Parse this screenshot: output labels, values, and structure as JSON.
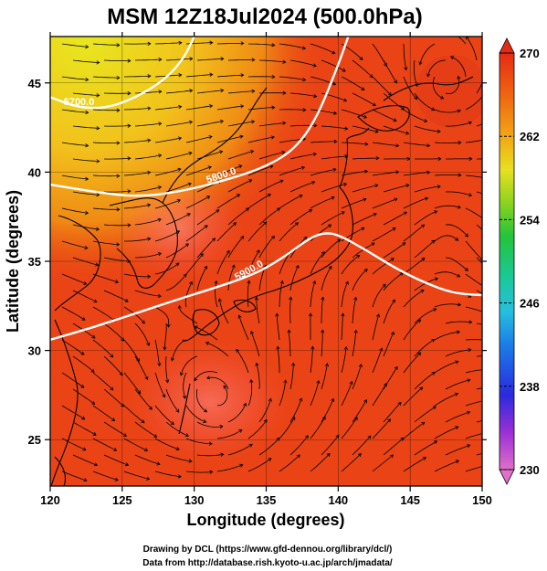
{
  "title": "MSM 12Z18Jul2024 (500.0hPa)",
  "x_axis": {
    "label": "Longitude (degrees)",
    "range": [
      120,
      150
    ],
    "ticks": [
      120,
      125,
      130,
      135,
      140,
      145,
      150
    ]
  },
  "y_axis": {
    "label": "Latitude  (degrees)",
    "range": [
      22.4,
      47.6
    ],
    "ticks": [
      25,
      30,
      35,
      40,
      45
    ]
  },
  "colorbar": {
    "range": [
      230,
      270
    ],
    "ticks": [
      270,
      262,
      254,
      246,
      238,
      230
    ],
    "colors": [
      "#e070c8",
      "#9b2fd6",
      "#2a2ae0",
      "#1a7ee8",
      "#25c0e0",
      "#1bc89a",
      "#22c43a",
      "#8ad41e",
      "#e8e020",
      "#f2a614",
      "#f06410",
      "#e62a14"
    ]
  },
  "contours": [
    {
      "label": "5900.0",
      "points": [
        [
          120,
          30.6
        ],
        [
          123,
          31.3
        ],
        [
          126,
          32.1
        ],
        [
          129,
          32.9
        ],
        [
          131,
          33.4
        ],
        [
          134,
          34.2
        ],
        [
          136,
          35.1
        ],
        [
          138,
          36.3
        ],
        [
          139,
          36.6
        ],
        [
          140,
          36.5
        ],
        [
          142,
          35.6
        ],
        [
          144,
          34.6
        ],
        [
          146,
          33.8
        ],
        [
          148,
          33.2
        ],
        [
          150,
          33.1
        ]
      ]
    },
    {
      "label": "5800.0",
      "points": [
        [
          120,
          39.3
        ],
        [
          123,
          38.9
        ],
        [
          126,
          38.6
        ],
        [
          129,
          38.9
        ],
        [
          132,
          39.5
        ],
        [
          135,
          40.3
        ],
        [
          137,
          41.3
        ],
        [
          138.5,
          43.0
        ],
        [
          140,
          46.0
        ],
        [
          140.7,
          47.6
        ]
      ]
    },
    {
      "label": "5700.0",
      "points": [
        [
          120,
          44.2
        ],
        [
          122,
          43.6
        ],
        [
          124,
          43.6
        ],
        [
          126,
          44.2
        ],
        [
          128,
          45.2
        ],
        [
          129.3,
          46.4
        ],
        [
          130,
          47.6
        ]
      ]
    }
  ],
  "credits": [
    "Drawing by DCL (https://www.gfd-dennou.org/library/dcl/)",
    "Data from http://database.rish.kyoto-u.ac.jp/arch/jmadata/"
  ]
}
